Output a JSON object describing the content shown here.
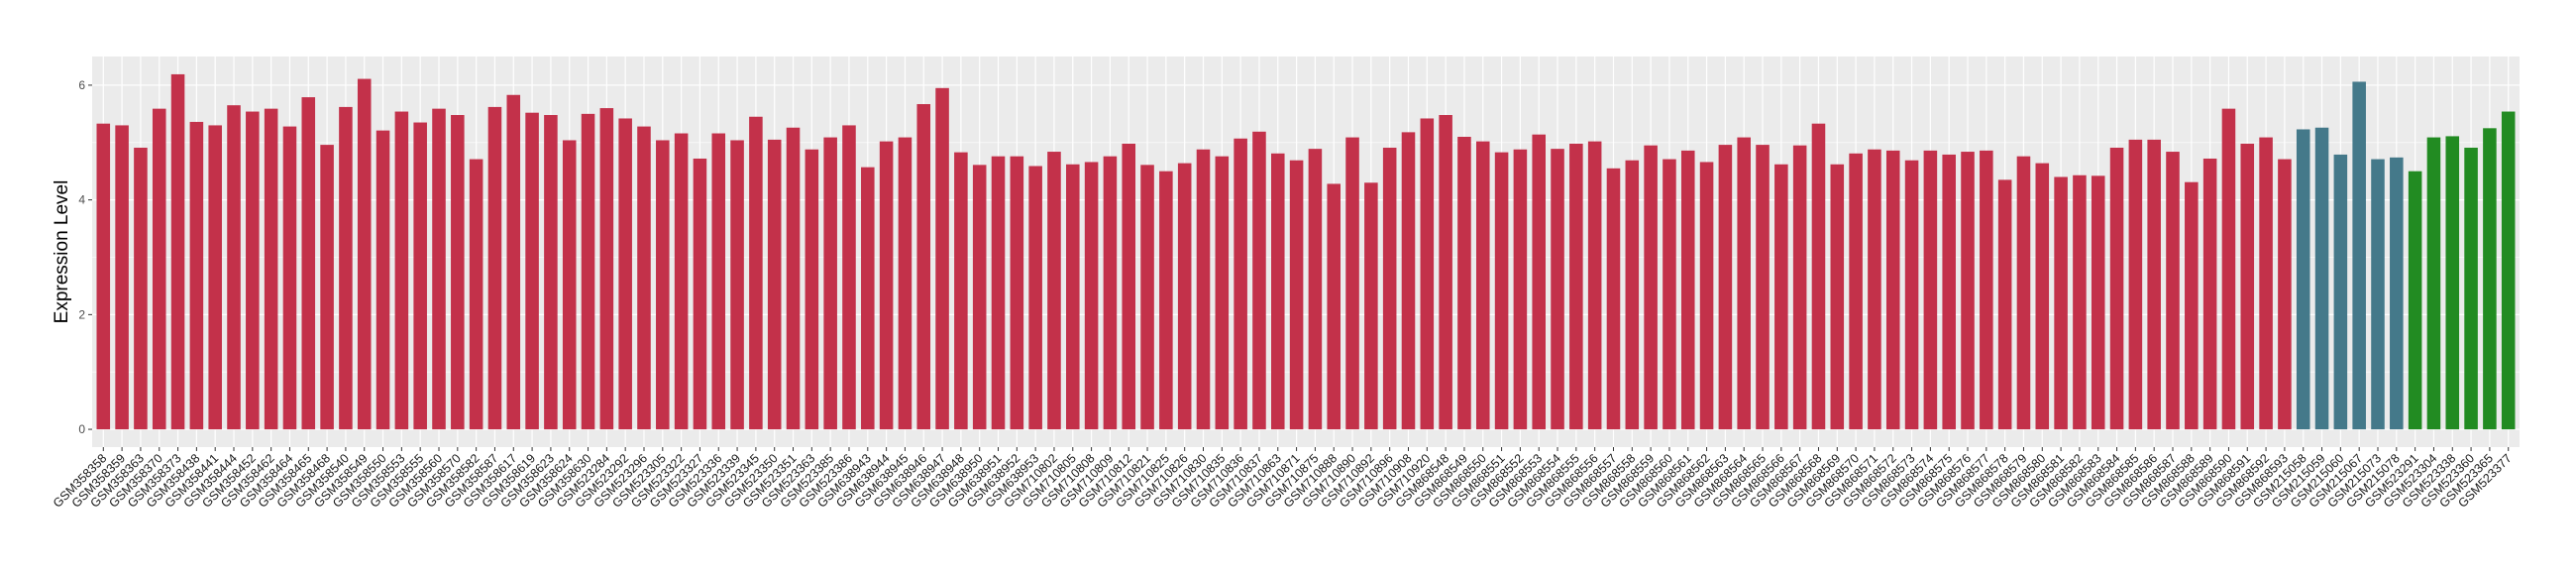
{
  "chart_data": {
    "type": "bar",
    "title": "",
    "xlabel": "",
    "ylabel": "Expression Level",
    "ylim": [
      -0.31,
      6.5
    ],
    "yticks": [
      0,
      2,
      4,
      6
    ],
    "grid": true,
    "legend": "none",
    "panel_background": "#EBEBEB",
    "series": [
      {
        "color": "#C3314A",
        "categories": [
          "GSM358358",
          "GSM358359",
          "GSM358363",
          "GSM358370",
          "GSM358373",
          "GSM358438",
          "GSM358441",
          "GSM358444",
          "GSM358452",
          "GSM358462",
          "GSM358464",
          "GSM358465",
          "GSM358468",
          "GSM358540",
          "GSM358549",
          "GSM358550",
          "GSM358553",
          "GSM358555",
          "GSM358560",
          "GSM358570",
          "GSM358582",
          "GSM358587",
          "GSM358617",
          "GSM358619",
          "GSM358623",
          "GSM358624",
          "GSM358630",
          "GSM523284",
          "GSM523292",
          "GSM523296",
          "GSM523305",
          "GSM523322",
          "GSM523327",
          "GSM523336",
          "GSM523339",
          "GSM523345",
          "GSM523350",
          "GSM523351",
          "GSM523363",
          "GSM523385",
          "GSM523386",
          "GSM638943",
          "GSM638944",
          "GSM638945",
          "GSM638946",
          "GSM638947",
          "GSM638948",
          "GSM638950",
          "GSM638951",
          "GSM638952",
          "GSM638953",
          "GSM710802",
          "GSM710805",
          "GSM710808",
          "GSM710809",
          "GSM710812",
          "GSM710821",
          "GSM710825",
          "GSM710826",
          "GSM710830",
          "GSM710835",
          "GSM710836",
          "GSM710837",
          "GSM710863",
          "GSM710871",
          "GSM710875",
          "GSM710888",
          "GSM710890",
          "GSM710892",
          "GSM710896",
          "GSM710908",
          "GSM710920",
          "GSM868548",
          "GSM868549",
          "GSM868550",
          "GSM868551",
          "GSM868552",
          "GSM868553",
          "GSM868554",
          "GSM868555",
          "GSM868556",
          "GSM868557",
          "GSM868558",
          "GSM868559",
          "GSM868560",
          "GSM868561",
          "GSM868562",
          "GSM868563",
          "GSM868564",
          "GSM868565",
          "GSM868566",
          "GSM868567",
          "GSM868568",
          "GSM868569",
          "GSM868570",
          "GSM868571",
          "GSM868572",
          "GSM868573",
          "GSM868574",
          "GSM868575",
          "GSM868576",
          "GSM868577",
          "GSM868578",
          "GSM868579",
          "GSM868580",
          "GSM868581",
          "GSM868582",
          "GSM868583",
          "GSM868584",
          "GSM868585",
          "GSM868586",
          "GSM868587",
          "GSM868588",
          "GSM868589",
          "GSM868590",
          "GSM868591",
          "GSM868592",
          "GSM868593"
        ],
        "values": [
          5.33,
          5.3,
          4.91,
          5.59,
          6.19,
          5.36,
          5.3,
          5.65,
          5.54,
          5.59,
          5.28,
          5.79,
          4.96,
          5.62,
          6.11,
          5.21,
          5.54,
          5.35,
          5.59,
          5.48,
          4.71,
          5.62,
          5.83,
          5.52,
          5.48,
          5.04,
          5.5,
          5.6,
          5.42,
          5.28,
          5.04,
          5.16,
          4.72,
          5.16,
          5.04,
          5.45,
          5.05,
          5.26,
          4.88,
          5.09,
          5.3,
          4.57,
          5.02,
          5.09,
          5.67,
          5.95,
          4.83,
          4.61,
          4.76,
          4.76,
          4.59,
          4.84,
          4.62,
          4.66,
          4.76,
          4.98,
          4.61,
          4.5,
          4.64,
          4.88,
          4.76,
          5.07,
          5.19,
          4.81,
          4.69,
          4.89,
          4.28,
          5.09,
          4.3,
          4.91,
          5.18,
          5.42,
          5.48,
          5.1,
          5.02,
          4.83,
          4.88,
          5.14,
          4.89,
          4.98,
          5.02,
          4.55,
          4.69,
          4.95,
          4.71,
          4.86,
          4.66,
          4.96,
          5.09,
          4.96,
          4.62,
          4.95,
          5.33,
          4.62,
          4.81,
          4.88,
          4.86,
          4.69,
          4.86,
          4.79,
          4.84,
          4.86,
          4.35,
          4.76,
          4.64,
          4.4,
          4.43,
          4.42,
          4.91,
          5.05,
          5.05,
          4.84,
          4.31,
          4.72,
          5.59,
          4.98,
          5.09,
          4.71
        ]
      },
      {
        "color": "#44798A",
        "categories": [
          "GSM215058",
          "GSM215059",
          "GSM215060",
          "GSM215067",
          "GSM215073",
          "GSM215078"
        ],
        "values": [
          5.23,
          5.26,
          4.79,
          6.06,
          4.71,
          4.74
        ]
      },
      {
        "color": "#228B22",
        "categories": [
          "GSM523291",
          "GSM523304",
          "GSM523338",
          "GSM523360",
          "GSM523365",
          "GSM523377"
        ],
        "values": [
          4.5,
          5.09,
          5.11,
          4.91,
          5.25,
          5.54
        ]
      }
    ]
  }
}
